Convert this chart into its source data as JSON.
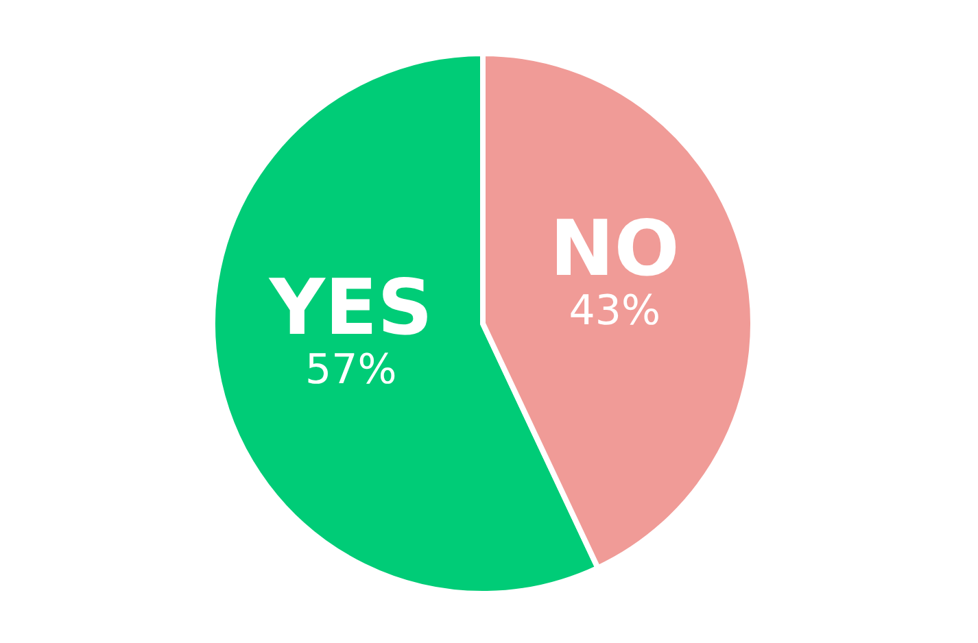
{
  "chart_data": {
    "type": "pie",
    "categories": [
      "YES",
      "NO"
    ],
    "values": [
      57,
      43
    ],
    "colors": [
      "#00cc77",
      "#f09b97"
    ],
    "value_labels": [
      "57%",
      "43%"
    ]
  }
}
